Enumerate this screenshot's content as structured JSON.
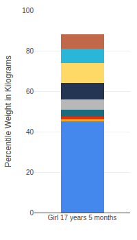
{
  "chart_data": {
    "type": "bar",
    "stacked": true,
    "categories": [
      "Girl 17 years 5 months"
    ],
    "series": [
      {
        "color": "#4488EE",
        "values": [
          45.0
        ]
      },
      {
        "color": "#F5A623",
        "values": [
          1.0
        ]
      },
      {
        "color": "#E03010",
        "values": [
          1.5
        ]
      },
      {
        "color": "#1A6B7C",
        "values": [
          3.5
        ]
      },
      {
        "color": "#B8B8B8",
        "values": [
          5.0
        ]
      },
      {
        "color": "#243554",
        "values": [
          8.0
        ]
      },
      {
        "color": "#FFD966",
        "values": [
          10.0
        ]
      },
      {
        "color": "#29B6D9",
        "values": [
          7.0
        ]
      },
      {
        "color": "#C1674A",
        "values": [
          7.0
        ]
      }
    ],
    "ylabel": "Percentile Weight in Kilograms",
    "ylim": [
      0,
      100
    ],
    "yticks": [
      0,
      20,
      40,
      60,
      80,
      100
    ],
    "grid": true
  }
}
